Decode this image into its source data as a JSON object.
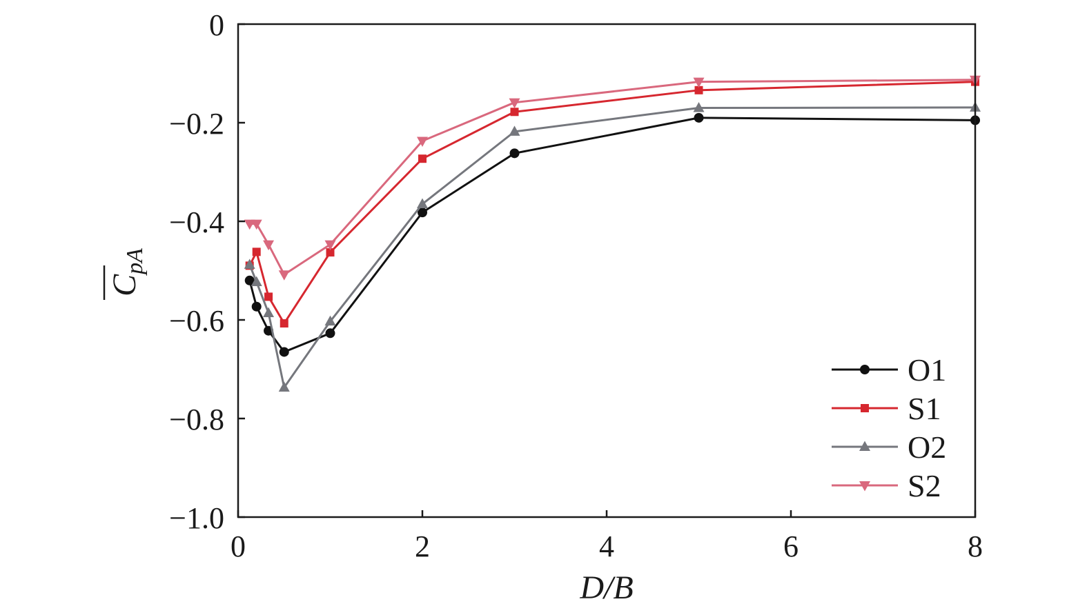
{
  "chart_data": {
    "type": "line",
    "title": "",
    "xlabel": "D/B",
    "ylabel": {
      "main": "C",
      "subscript": "pA"
    },
    "xlim": [
      0,
      8
    ],
    "ylim": [
      -1.0,
      0
    ],
    "xticks": [
      0,
      2,
      4,
      6,
      8
    ],
    "xtick_labels": [
      "0",
      "2",
      "4",
      "6",
      "8"
    ],
    "yticks": [
      0,
      -0.2,
      -0.4,
      -0.6,
      -0.8,
      -1.0
    ],
    "ytick_labels": [
      "0",
      "−0.2",
      "−0.4",
      "−0.6",
      "−0.8",
      "−1.0"
    ],
    "grid": false,
    "legend_position": "bottom-right",
    "x": [
      0.125,
      0.2,
      0.33,
      0.5,
      1,
      2,
      3,
      5,
      8
    ],
    "series": [
      {
        "name": "O1",
        "color": "#111111",
        "marker": "circle",
        "values": [
          -0.52,
          -0.573,
          -0.622,
          -0.665,
          -0.627,
          -0.382,
          -0.262,
          -0.19,
          -0.195
        ]
      },
      {
        "name": "S1",
        "color": "#d6272f",
        "marker": "square",
        "values": [
          -0.49,
          -0.462,
          -0.553,
          -0.607,
          -0.463,
          -0.273,
          -0.178,
          -0.134,
          -0.117
        ]
      },
      {
        "name": "O2",
        "color": "#75777d",
        "marker": "triangle-up",
        "values": [
          -0.488,
          -0.523,
          -0.586,
          -0.737,
          -0.603,
          -0.365,
          -0.218,
          -0.17,
          -0.169
        ]
      },
      {
        "name": "S2",
        "color": "#d9687d",
        "marker": "triangle-down",
        "values": [
          -0.405,
          -0.405,
          -0.447,
          -0.508,
          -0.447,
          -0.237,
          -0.159,
          -0.117,
          -0.113
        ]
      }
    ]
  }
}
